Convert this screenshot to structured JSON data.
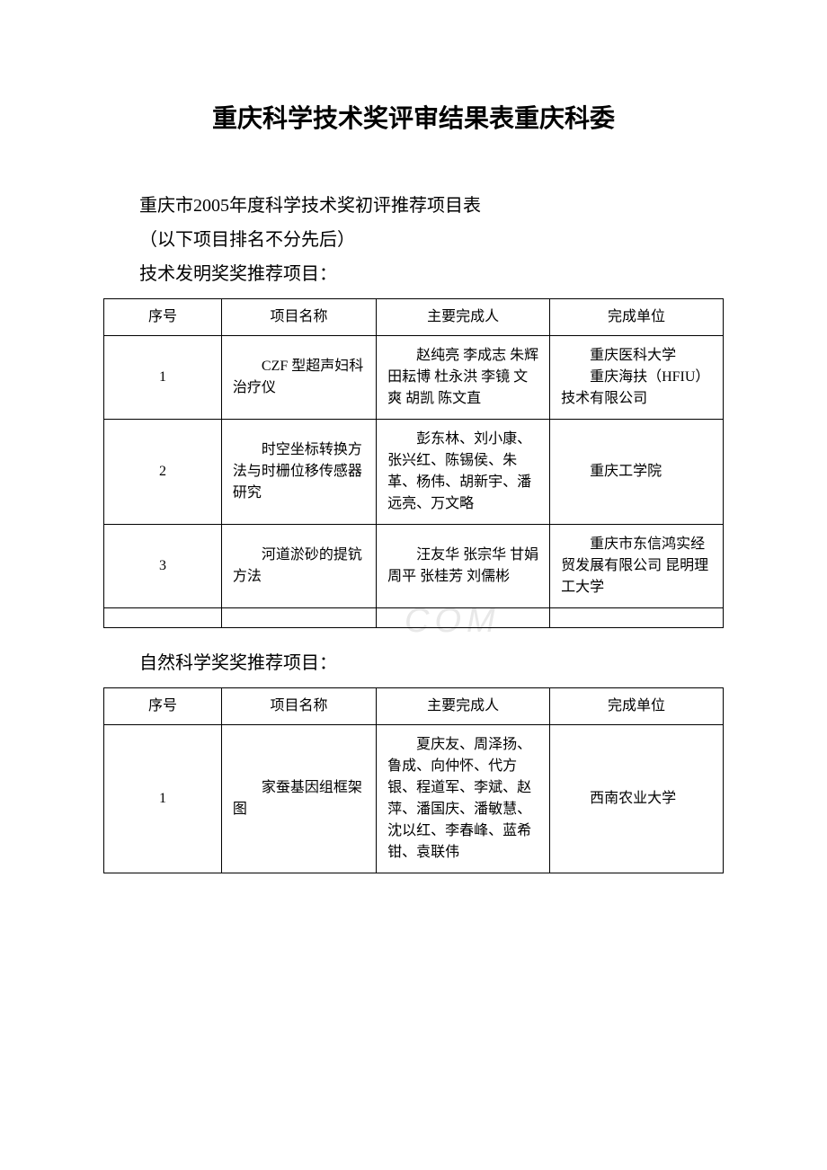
{
  "title": "重庆科学技术奖评审结果表重庆科委",
  "intro1": "重庆市2005年度科学技术奖初评推荐项目表",
  "intro2": "（以下项目排名不分先后）",
  "section1_heading": "技术发明奖奖推荐项目：",
  "section2_heading": "自然科学奖奖推荐项目：",
  "headers": {
    "seq": "序号",
    "name": "项目名称",
    "people": "主要完成人",
    "unit": "完成单位"
  },
  "table1": {
    "rows": [
      {
        "seq": "1",
        "name": "CZF 型超声妇科治疗仪",
        "people": "赵纯亮 李成志 朱辉 田耘博 杜永洪 李镜 文爽 胡凯 陈文直",
        "unit": "重庆医科大学\n　　重庆海扶（HFIU）技术有限公司"
      },
      {
        "seq": "2",
        "name": "时空坐标转换方法与时栅位移传感器研究",
        "people": "彭东林、刘小康、张兴红、陈锡侯、朱革、杨伟、胡新宇、潘远亮、万文略",
        "unit": "重庆工学院"
      },
      {
        "seq": "3",
        "name": "河道淤砂的提钪方法",
        "people": "汪友华 张宗华 甘娟 周平 张桂芳 刘儒彬",
        "unit": "重庆市东信鸿实经贸发展有限公司 昆明理工大学"
      }
    ]
  },
  "table2": {
    "rows": [
      {
        "seq": "1",
        "name": "家蚕基因组框架图",
        "people": "夏庆友、周泽扬、鲁成、向仲怀、代方银、程道军、李斌、赵萍、潘国庆、潘敏慧、沈以红、李春峰、蓝希钳、袁联伟",
        "unit": "西南农业大学"
      }
    ]
  },
  "watermark": "COM"
}
